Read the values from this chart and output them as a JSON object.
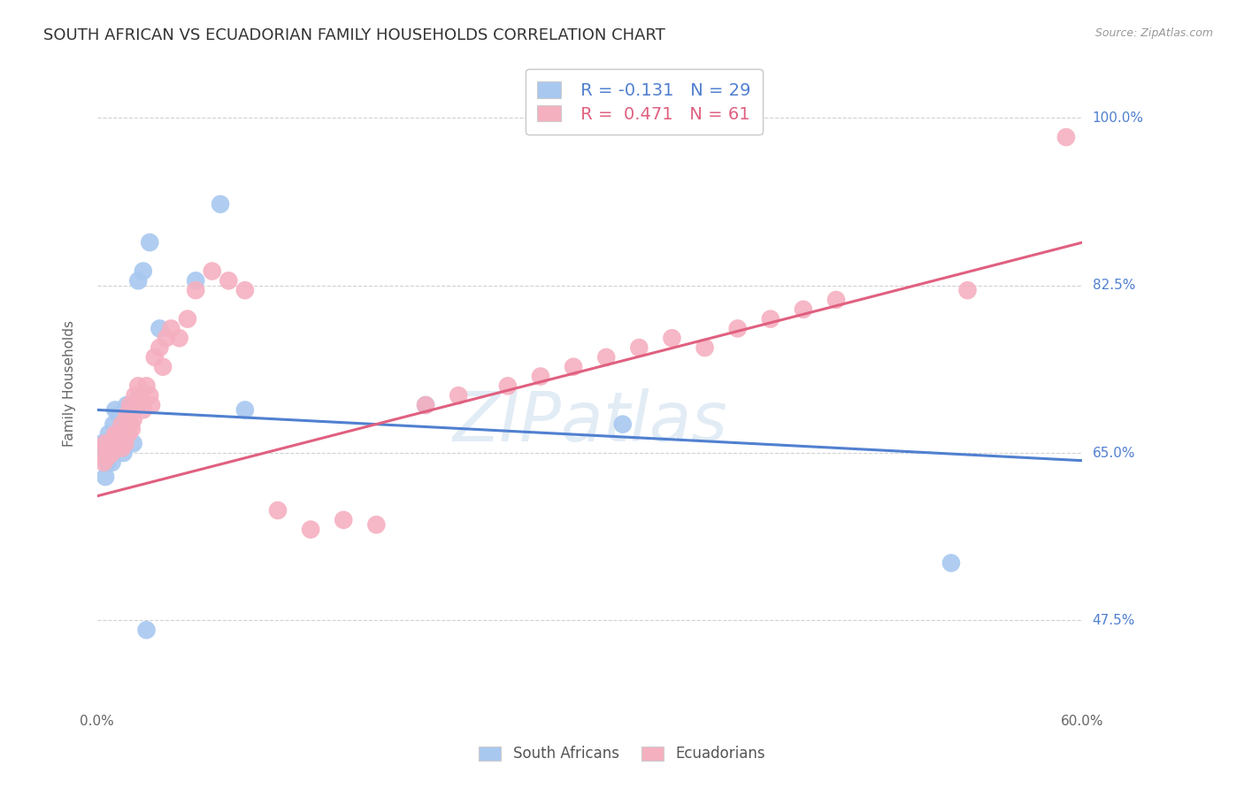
{
  "title": "SOUTH AFRICAN VS ECUADORIAN FAMILY HOUSEHOLDS CORRELATION CHART",
  "source": "Source: ZipAtlas.com",
  "ylabel": "Family Households",
  "ytick_labels": [
    "47.5%",
    "65.0%",
    "82.5%",
    "100.0%"
  ],
  "ytick_values": [
    0.475,
    0.65,
    0.825,
    1.0
  ],
  "xmin": 0.0,
  "xmax": 0.6,
  "ymin": 0.385,
  "ymax": 1.06,
  "blue_label": "South Africans",
  "pink_label": "Ecuadorians",
  "blue_R": -0.131,
  "blue_N": 29,
  "pink_R": 0.471,
  "pink_N": 61,
  "blue_color": "#a8c8f0",
  "pink_color": "#f5b0c0",
  "blue_line_color": "#5080d0",
  "pink_line_color": "#e06080",
  "watermark": "ZIPatlas",
  "blue_scatter_x": [
    0.003,
    0.005,
    0.005,
    0.006,
    0.007,
    0.008,
    0.009,
    0.01,
    0.01,
    0.011,
    0.012,
    0.013,
    0.014,
    0.015,
    0.016,
    0.018,
    0.02,
    0.022,
    0.025,
    0.028,
    0.032,
    0.038,
    0.06,
    0.075,
    0.09,
    0.2,
    0.32,
    0.52,
    0.03
  ],
  "blue_scatter_y": [
    0.66,
    0.65,
    0.625,
    0.64,
    0.67,
    0.66,
    0.64,
    0.68,
    0.66,
    0.695,
    0.67,
    0.69,
    0.66,
    0.68,
    0.65,
    0.7,
    0.7,
    0.66,
    0.83,
    0.84,
    0.87,
    0.78,
    0.83,
    0.91,
    0.695,
    0.7,
    0.68,
    0.535,
    0.465
  ],
  "pink_scatter_x": [
    0.003,
    0.004,
    0.005,
    0.006,
    0.007,
    0.008,
    0.009,
    0.01,
    0.011,
    0.012,
    0.013,
    0.014,
    0.015,
    0.015,
    0.016,
    0.017,
    0.018,
    0.019,
    0.02,
    0.02,
    0.021,
    0.022,
    0.022,
    0.023,
    0.025,
    0.025,
    0.026,
    0.028,
    0.03,
    0.032,
    0.033,
    0.035,
    0.038,
    0.04,
    0.042,
    0.045,
    0.05,
    0.055,
    0.06,
    0.07,
    0.08,
    0.09,
    0.11,
    0.13,
    0.15,
    0.17,
    0.2,
    0.22,
    0.25,
    0.27,
    0.29,
    0.31,
    0.33,
    0.35,
    0.37,
    0.39,
    0.41,
    0.43,
    0.45,
    0.53,
    0.59
  ],
  "pink_scatter_y": [
    0.65,
    0.64,
    0.66,
    0.645,
    0.655,
    0.66,
    0.65,
    0.665,
    0.67,
    0.665,
    0.66,
    0.67,
    0.655,
    0.68,
    0.665,
    0.66,
    0.69,
    0.67,
    0.68,
    0.7,
    0.675,
    0.695,
    0.685,
    0.71,
    0.72,
    0.7,
    0.71,
    0.695,
    0.72,
    0.71,
    0.7,
    0.75,
    0.76,
    0.74,
    0.77,
    0.78,
    0.77,
    0.79,
    0.82,
    0.84,
    0.83,
    0.82,
    0.59,
    0.57,
    0.58,
    0.575,
    0.7,
    0.71,
    0.72,
    0.73,
    0.74,
    0.75,
    0.76,
    0.77,
    0.76,
    0.78,
    0.79,
    0.8,
    0.81,
    0.82,
    0.98
  ],
  "blue_line_x0": 0.0,
  "blue_line_x1": 0.6,
  "blue_line_y0": 0.695,
  "blue_line_y1": 0.642,
  "pink_line_x0": 0.0,
  "pink_line_x1": 0.6,
  "pink_line_y0": 0.605,
  "pink_line_y1": 0.87
}
